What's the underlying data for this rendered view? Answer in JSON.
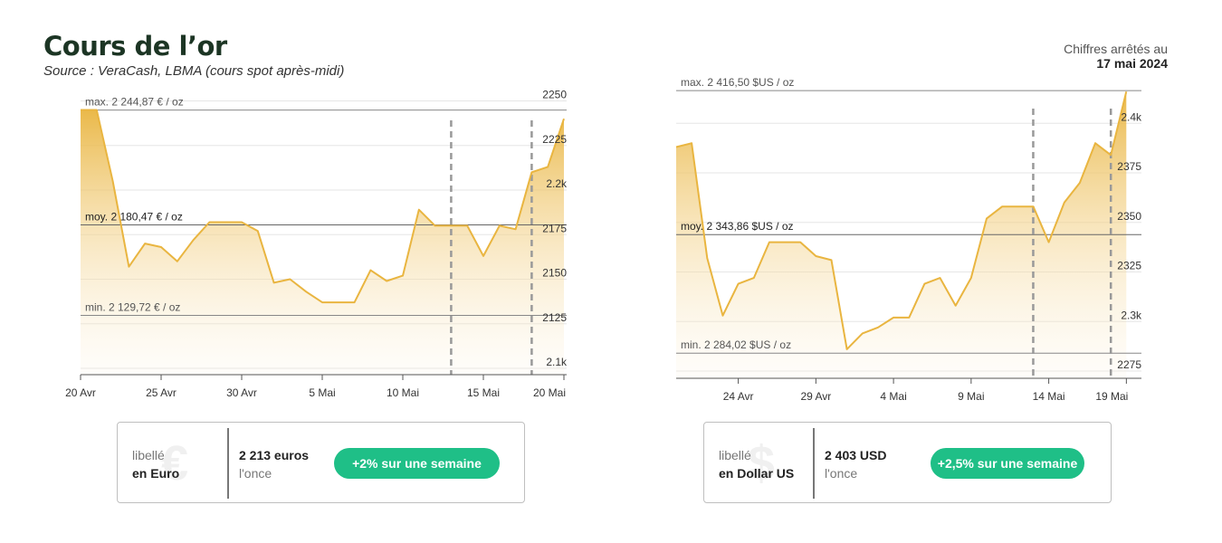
{
  "header": {
    "title": "Cours de l’or",
    "subtitle": "Source : VeraCash, LBMA (cours spot après-midi)",
    "asof_label": "Chiffres arrêtés au",
    "asof_date": "17 mai 2024"
  },
  "colors": {
    "gold": "#e9b540",
    "pill": "#1fbf87",
    "title": "#1c3524"
  },
  "chart_data": [
    {
      "type": "line",
      "currency": "EUR",
      "title": "",
      "x": [
        "2024-04-20",
        "2024-04-21",
        "2024-04-22",
        "2024-04-23",
        "2024-04-24",
        "2024-04-25",
        "2024-04-26",
        "2024-04-27",
        "2024-04-28",
        "2024-04-29",
        "2024-04-30",
        "2024-05-01",
        "2024-05-02",
        "2024-05-03",
        "2024-05-04",
        "2024-05-05",
        "2024-05-06",
        "2024-05-07",
        "2024-05-08",
        "2024-05-09",
        "2024-05-10",
        "2024-05-11",
        "2024-05-12",
        "2024-05-13",
        "2024-05-14",
        "2024-05-15",
        "2024-05-16",
        "2024-05-17",
        "2024-05-18",
        "2024-05-19",
        "2024-05-20"
      ],
      "series": [
        {
          "values": [
            2244.9,
            2244.9,
            2205,
            2157,
            2170,
            2168,
            2160,
            2172,
            2182,
            2182,
            2182,
            2177,
            2148,
            2150,
            2143,
            2137,
            2137,
            2137,
            2155,
            2149,
            2152,
            2189,
            2180,
            2180,
            2180,
            2163,
            2180,
            2178,
            2210,
            2213,
            2240
          ]
        }
      ],
      "xticks": [
        "20 Avr",
        "25 Avr",
        "30 Avr",
        "5 Mai",
        "10 Mai",
        "15 Mai",
        "20 Mai"
      ],
      "xtick_values": [
        "2024-04-20",
        "2024-04-25",
        "2024-04-30",
        "2024-05-05",
        "2024-05-10",
        "2024-05-15",
        "2024-05-20"
      ],
      "yticks": [
        "2.1k",
        "2125",
        "2150",
        "2175",
        "2.2k",
        "2225",
        "2250"
      ],
      "ytick_values": [
        2100,
        2125,
        2150,
        2175,
        2200,
        2225,
        2250
      ],
      "ylim": [
        2100,
        2250
      ],
      "refs": [
        {
          "label": "max. 2 244,87 € / oz",
          "value": 2244.87
        },
        {
          "label": "moy. 2 180,47 € / oz",
          "value": 2180.47
        },
        {
          "label": "min. 2 129,72 € / oz",
          "value": 2129.72
        }
      ],
      "vlines": [
        "2024-05-13",
        "2024-05-18"
      ],
      "grid": true
    },
    {
      "type": "line",
      "currency": "USD",
      "title": "",
      "x": [
        "2024-04-20",
        "2024-04-21",
        "2024-04-22",
        "2024-04-23",
        "2024-04-24",
        "2024-04-25",
        "2024-04-26",
        "2024-04-27",
        "2024-04-28",
        "2024-04-29",
        "2024-04-30",
        "2024-05-01",
        "2024-05-02",
        "2024-05-03",
        "2024-05-04",
        "2024-05-05",
        "2024-05-06",
        "2024-05-07",
        "2024-05-08",
        "2024-05-09",
        "2024-05-10",
        "2024-05-11",
        "2024-05-12",
        "2024-05-13",
        "2024-05-14",
        "2024-05-15",
        "2024-05-16",
        "2024-05-17",
        "2024-05-18",
        "2024-05-19"
      ],
      "series": [
        {
          "values": [
            2388,
            2390,
            2332,
            2303,
            2319,
            2322,
            2340,
            2340,
            2340,
            2333,
            2331,
            2286,
            2294,
            2297,
            2302,
            2302,
            2319,
            2322,
            2308,
            2322,
            2352,
            2358,
            2358,
            2358,
            2340,
            2360,
            2370,
            2390,
            2384,
            2416
          ]
        }
      ],
      "xticks": [
        "24 Avr",
        "29 Avr",
        "4 Mai",
        "9 Mai",
        "14 Mai",
        "19 Mai"
      ],
      "xtick_values": [
        "2024-04-24",
        "2024-04-29",
        "2024-05-04",
        "2024-05-09",
        "2024-05-14",
        "2024-05-19"
      ],
      "yticks": [
        "2275",
        "2.3k",
        "2325",
        "2350",
        "2375",
        "2.4k"
      ],
      "ytick_values": [
        2275,
        2300,
        2325,
        2350,
        2375,
        2400
      ],
      "ylim": [
        2275,
        2416.5
      ],
      "refs": [
        {
          "label": "max. 2 416,50 $US / oz",
          "value": 2416.5
        },
        {
          "label": "moy. 2 343,86 $US / oz",
          "value": 2343.86
        },
        {
          "label": "min. 2 284,02 $US / oz",
          "value": 2284.02
        }
      ],
      "vlines": [
        "2024-05-13",
        "2024-05-18"
      ],
      "grid": true
    }
  ],
  "cards": [
    {
      "label_line1": "libellé",
      "label_line2": "en Euro",
      "symbol": "€",
      "price": "2 213 euros",
      "unit": "l'once",
      "change": "+2% sur une semaine"
    },
    {
      "label_line1": "libellé",
      "label_line2": "en Dollar US",
      "symbol": "$",
      "price": "2 403  USD",
      "unit": "l'once",
      "change": "+2,5% sur une semaine"
    }
  ]
}
